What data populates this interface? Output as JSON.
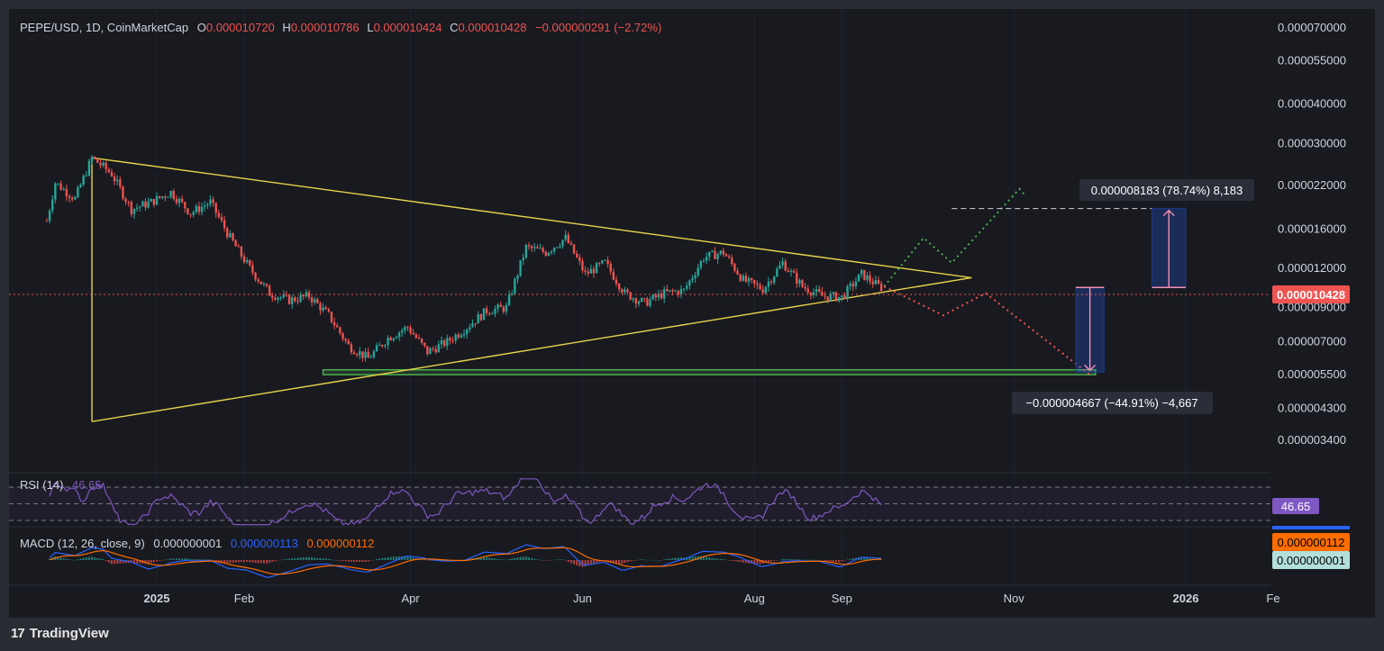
{
  "header": {
    "symbol": "PEPE/USD, 1D, CoinMarketCap",
    "open_label": "O",
    "open": "0.000010720",
    "high_label": "H",
    "high": "0.000010786",
    "low_label": "L",
    "low": "0.000010424",
    "close_label": "C",
    "close": "0.000010428",
    "change": "−0.000000291 (−2.72%)"
  },
  "current_price_label": "0.000010428",
  "measure_up": "0.000008183 (78.74%) 8,183",
  "measure_down": "−0.000004667 (−44.91%) −4,667",
  "rsi": {
    "title": "RSI (14)",
    "value": "46.65"
  },
  "macd": {
    "title": "MACD (12, 26, close, 9)",
    "hist": "0.000000001",
    "macd": "0.000000113",
    "signal": "0.000000112",
    "badge_signal": "0.000000112",
    "badge_hist": "0.000000001"
  },
  "footer": {
    "brand": "TradingView",
    "logo": "17"
  },
  "colors": {
    "up": "#26a69a",
    "down": "#ef5350",
    "triangle": "#e8d34a",
    "support": "#4caf50",
    "rsi": "#7e57c2",
    "macd": "#2962ff",
    "signal": "#ff6d00",
    "background": "#181a20"
  },
  "chart_data": {
    "type": "candlestick",
    "title": "PEPE/USD, 1D, CoinMarketCap",
    "y_scale": "log",
    "y_ticks": [
      "0.000070000",
      "0.000055000",
      "0.000040000",
      "0.000030000",
      "0.000022000",
      "0.000016000",
      "0.000012000",
      "0.000009000",
      "0.000007000",
      "0.000005500",
      "0.000004300",
      "0.000003400"
    ],
    "x_ticks": [
      "2025",
      "Feb",
      "Apr",
      "Jun",
      "Aug",
      "Sep",
      "Nov",
      "2026",
      "Fe"
    ],
    "close_path": [
      [
        "2024-11-23",
        1.7e-05
      ],
      [
        "2024-11-26",
        2.25e-05
      ],
      [
        "2024-12-03",
        2e-05
      ],
      [
        "2024-12-09",
        2.7e-05
      ],
      [
        "2024-12-16",
        2.4e-05
      ],
      [
        "2024-12-23",
        1.85e-05
      ],
      [
        "2024-12-30",
        1.95e-05
      ],
      [
        "2025-01-06",
        2.1e-05
      ],
      [
        "2025-01-13",
        1.8e-05
      ],
      [
        "2025-01-20",
        1.95e-05
      ],
      [
        "2025-01-27",
        1.5e-05
      ],
      [
        "2025-02-03",
        1.2e-05
      ],
      [
        "2025-02-10",
        1e-05
      ],
      [
        "2025-02-17",
        9.5e-06
      ],
      [
        "2025-02-24",
        9.8e-06
      ],
      [
        "2025-03-03",
        8.5e-06
      ],
      [
        "2025-03-10",
        6.8e-06
      ],
      [
        "2025-03-17",
        6.2e-06
      ],
      [
        "2025-03-24",
        7.2e-06
      ],
      [
        "2025-03-31",
        7.8e-06
      ],
      [
        "2025-04-07",
        6.5e-06
      ],
      [
        "2025-04-14",
        7e-06
      ],
      [
        "2025-04-21",
        7.8e-06
      ],
      [
        "2025-04-28",
        8.8e-06
      ],
      [
        "2025-05-05",
        9e-06
      ],
      [
        "2025-05-12",
        1.4e-05
      ],
      [
        "2025-05-19",
        1.35e-05
      ],
      [
        "2025-05-26",
        1.5e-05
      ],
      [
        "2025-06-02",
        1.15e-05
      ],
      [
        "2025-06-09",
        1.25e-05
      ],
      [
        "2025-06-16",
        1e-05
      ],
      [
        "2025-06-23",
        9.3e-06
      ],
      [
        "2025-06-30",
        1e-05
      ],
      [
        "2025-07-07",
        1.02e-05
      ],
      [
        "2025-07-14",
        1.3e-05
      ],
      [
        "2025-07-21",
        1.35e-05
      ],
      [
        "2025-07-28",
        1.1e-05
      ],
      [
        "2025-08-04",
        1.03e-05
      ],
      [
        "2025-08-11",
        1.25e-05
      ],
      [
        "2025-08-18",
        1.05e-05
      ],
      [
        "2025-08-25",
        9.8e-06
      ],
      [
        "2025-09-01",
        9.7e-06
      ],
      [
        "2025-09-08",
        1.15e-05
      ],
      [
        "2025-09-15",
        1.04e-05
      ]
    ],
    "last_close": 1.0428e-05,
    "triangle": {
      "upper": [
        [
          "2024-12-09",
          2.7e-05
        ],
        [
          "2025-10-17",
          1.12e-05
        ]
      ],
      "lower": [
        [
          "2024-12-09",
          3.9e-06
        ],
        [
          "2025-10-17",
          1.12e-05
        ]
      ]
    },
    "support_zone": [
      5.5e-06,
      5.7e-06
    ],
    "projection_up": [
      1.05e-05,
      1.5e-05,
      1.25e-05,
      2.15e-05
    ],
    "projection_down": [
      1.05e-05,
      8.5e-06,
      1e-05,
      5.5e-06
    ],
    "rsi_current": 46.65,
    "rsi_levels": [
      70,
      50,
      30
    ]
  }
}
